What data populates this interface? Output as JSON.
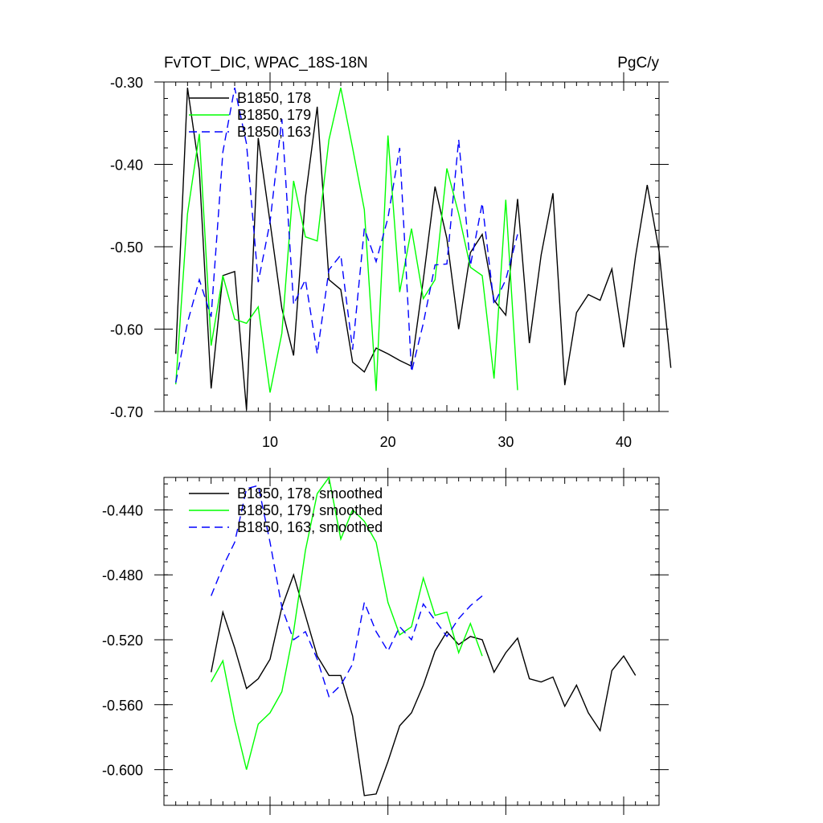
{
  "chart_data": [
    {
      "type": "line",
      "title": "FvTOT_DIC, WPAC_18S-18N",
      "units": "PgC/y",
      "xlim": [
        1,
        43
      ],
      "ylim": [
        -0.7,
        -0.3
      ],
      "xticks": [
        10,
        20,
        30,
        40
      ],
      "xtick_labels": [
        "10",
        "20",
        "30",
        "40"
      ],
      "yticks": [
        -0.7,
        -0.6,
        -0.5,
        -0.4,
        -0.3
      ],
      "ytick_labels": [
        "-0.70",
        "-0.60",
        "-0.50",
        "-0.40",
        "-0.30"
      ],
      "grid": false,
      "legend_position": "top-left",
      "series": [
        {
          "name": "B1850, 178",
          "color": "#000000",
          "dash": "solid",
          "x_start": 2,
          "values": [
            -0.63,
            -0.307,
            -0.407,
            -0.672,
            -0.535,
            -0.53,
            -0.698,
            -0.368,
            -0.47,
            -0.575,
            -0.632,
            -0.44,
            -0.33,
            -0.54,
            -0.552,
            -0.64,
            -0.652,
            -0.623,
            -0.63,
            -0.638,
            -0.645,
            -0.54,
            -0.427,
            -0.49,
            -0.6,
            -0.507,
            -0.485,
            -0.565,
            -0.583,
            -0.442,
            -0.617,
            -0.51,
            -0.435,
            -0.668,
            -0.58,
            -0.558,
            -0.565,
            -0.527,
            -0.622,
            -0.512,
            -0.425,
            -0.505,
            -0.647
          ]
        },
        {
          "name": "B1850, 179",
          "color": "#00ff00",
          "dash": "solid",
          "x_start": 2,
          "values": [
            -0.667,
            -0.46,
            -0.363,
            -0.62,
            -0.535,
            -0.588,
            -0.593,
            -0.573,
            -0.677,
            -0.605,
            -0.42,
            -0.488,
            -0.493,
            -0.37,
            -0.307,
            -0.38,
            -0.455,
            -0.675,
            -0.365,
            -0.555,
            -0.478,
            -0.563,
            -0.54,
            -0.405,
            -0.46,
            -0.525,
            -0.535,
            -0.66,
            -0.443,
            -0.674
          ]
        },
        {
          "name": "B1850, 163",
          "color": "#0000ff",
          "dash": "dashed",
          "x_start": 2,
          "values": [
            -0.665,
            -0.592,
            -0.54,
            -0.585,
            -0.385,
            -0.307,
            -0.375,
            -0.543,
            -0.47,
            -0.345,
            -0.57,
            -0.54,
            -0.63,
            -0.528,
            -0.51,
            -0.625,
            -0.478,
            -0.518,
            -0.465,
            -0.38,
            -0.652,
            -0.593,
            -0.522,
            -0.521,
            -0.37,
            -0.523,
            -0.447,
            -0.57,
            -0.54,
            -0.485
          ]
        }
      ]
    },
    {
      "type": "line",
      "title": "",
      "xlim": [
        1,
        43
      ],
      "ylim": [
        -0.622,
        -0.42
      ],
      "xticks": [
        10,
        20,
        30,
        40
      ],
      "yticks": [
        -0.6,
        -0.56,
        -0.52,
        -0.48,
        -0.44
      ],
      "ytick_labels": [
        "-0.600",
        "-0.560",
        "-0.520",
        "-0.480",
        "-0.440"
      ],
      "grid": false,
      "legend_position": "top-left",
      "series": [
        {
          "name": "B1850, 178, smoothed",
          "color": "#000000",
          "dash": "solid",
          "x_start": 5,
          "values": [
            -0.54,
            -0.503,
            -0.525,
            -0.55,
            -0.544,
            -0.532,
            -0.5,
            -0.48,
            -0.505,
            -0.53,
            -0.542,
            -0.542,
            -0.567,
            -0.616,
            -0.615,
            -0.595,
            -0.573,
            -0.565,
            -0.548,
            -0.527,
            -0.515,
            -0.523,
            -0.518,
            -0.52,
            -0.54,
            -0.528,
            -0.519,
            -0.544,
            -0.546,
            -0.543,
            -0.561,
            -0.548,
            -0.565,
            -0.576,
            -0.539,
            -0.53,
            -0.542
          ]
        },
        {
          "name": "B1850, 179, smoothed",
          "color": "#00ff00",
          "dash": "solid",
          "x_start": 5,
          "values": [
            -0.546,
            -0.533,
            -0.57,
            -0.6,
            -0.572,
            -0.565,
            -0.552,
            -0.515,
            -0.465,
            -0.43,
            -0.42,
            -0.458,
            -0.44,
            -0.447,
            -0.46,
            -0.497,
            -0.517,
            -0.512,
            -0.482,
            -0.505,
            -0.503,
            -0.528,
            -0.51,
            -0.53
          ]
        },
        {
          "name": "B1850, 163, smoothed",
          "color": "#0000ff",
          "dash": "dashed",
          "x_start": 5,
          "values": [
            -0.493,
            -0.475,
            -0.46,
            -0.427,
            -0.425,
            -0.46,
            -0.5,
            -0.52,
            -0.515,
            -0.532,
            -0.555,
            -0.548,
            -0.535,
            -0.497,
            -0.515,
            -0.527,
            -0.512,
            -0.52,
            -0.498,
            -0.508,
            -0.518,
            -0.507,
            -0.499,
            -0.493
          ]
        }
      ]
    }
  ]
}
